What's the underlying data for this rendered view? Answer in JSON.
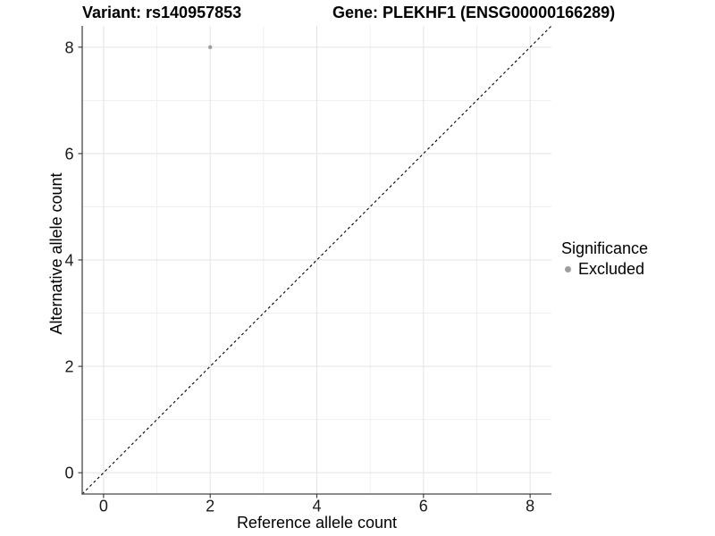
{
  "chart_data": {
    "type": "scatter",
    "title_left": "Variant: rs140957853",
    "title_right": "Gene: PLEKHF1 (ENSG00000166289)",
    "xlabel": "Reference allele count",
    "ylabel": "Alternative allele count",
    "xlim": [
      -0.4,
      8.4
    ],
    "ylim": [
      -0.4,
      8.4
    ],
    "x_major_ticks": [
      0,
      2,
      4,
      6,
      8
    ],
    "y_major_ticks": [
      0,
      2,
      4,
      6,
      8
    ],
    "x_minor_gridlines": [
      1,
      3,
      5,
      7
    ],
    "y_minor_gridlines": [
      1,
      3,
      5,
      7
    ],
    "grid": "major and minor gridlines, white panel",
    "reference_line": {
      "kind": "identity y = x",
      "style": "dashed",
      "color": "#000000"
    },
    "series": [
      {
        "name": "Excluded",
        "color": "#9e9e9e",
        "points": [
          {
            "x": 2,
            "y": 8
          }
        ]
      }
    ],
    "legend": {
      "title": "Significance",
      "position": "right",
      "items": [
        {
          "label": "Excluded",
          "color": "#9e9e9e"
        }
      ]
    },
    "style_colors": {
      "axis_line": "#47474a",
      "tick_mark": "#333333",
      "major_grid": "#e3e3e3",
      "minor_grid": "#efefef",
      "tick_text": "#1a1a1a"
    }
  }
}
